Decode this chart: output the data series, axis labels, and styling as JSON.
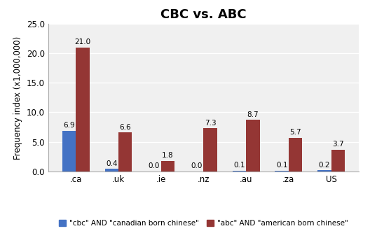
{
  "title": "CBC vs. ABC",
  "categories": [
    ".ca",
    ".uk",
    ".ie",
    ".nz",
    ".au",
    ".za",
    "US"
  ],
  "cbc_values": [
    6.9,
    0.4,
    0.0,
    0.0,
    0.1,
    0.1,
    0.2
  ],
  "abc_values": [
    21.0,
    6.6,
    1.8,
    7.3,
    8.7,
    5.7,
    3.7
  ],
  "cbc_color": "#4472C4",
  "abc_color": "#943634",
  "ylabel": "Frequency index (x1,000,000)",
  "ylim": [
    0,
    25.0
  ],
  "yticks": [
    0.0,
    5.0,
    10.0,
    15.0,
    20.0,
    25.0
  ],
  "legend_cbc": "\"cbc\" AND \"canadian born chinese\"",
  "legend_abc": "\"abc\" AND \"american born chinese\"",
  "bar_width": 0.32,
  "title_fontsize": 13,
  "axis_fontsize": 8.5,
  "tick_fontsize": 8.5,
  "label_fontsize": 7.5,
  "background_color": "#ffffff",
  "plot_bg_color": "#f0f0f0",
  "grid_color": "#ffffff"
}
